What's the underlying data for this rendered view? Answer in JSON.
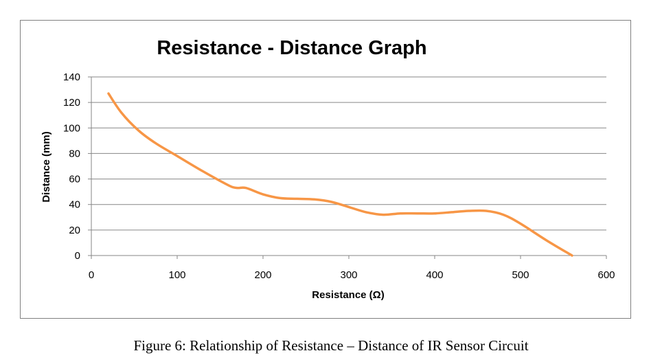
{
  "chart_data": {
    "type": "line",
    "title": "Resistance - Distance Graph",
    "xlabel": "Resistance (Ω)",
    "ylabel": "Distance (mm)",
    "xlim": [
      0,
      600
    ],
    "ylim": [
      0,
      140
    ],
    "xticks": [
      0,
      100,
      200,
      300,
      400,
      500,
      600
    ],
    "yticks": [
      0,
      20,
      40,
      60,
      80,
      100,
      120,
      140
    ],
    "grid": true,
    "line_color": "#f79646",
    "series": [
      {
        "x": [
          20,
          35,
          55,
          75,
          100,
          130,
          160,
          170,
          180,
          200,
          220,
          240,
          260,
          280,
          300,
          320,
          340,
          360,
          380,
          400,
          420,
          440,
          460,
          480,
          500,
          530,
          560
        ],
        "y": [
          127,
          112,
          98,
          88,
          78,
          66,
          55,
          53,
          53,
          48,
          45,
          44.5,
          44,
          42,
          38,
          34,
          32,
          33,
          33,
          33,
          34,
          35,
          35,
          32,
          25,
          12,
          0
        ]
      }
    ]
  },
  "caption": "Figure 6: Relationship of Resistance – Distance of IR Sensor Circuit"
}
